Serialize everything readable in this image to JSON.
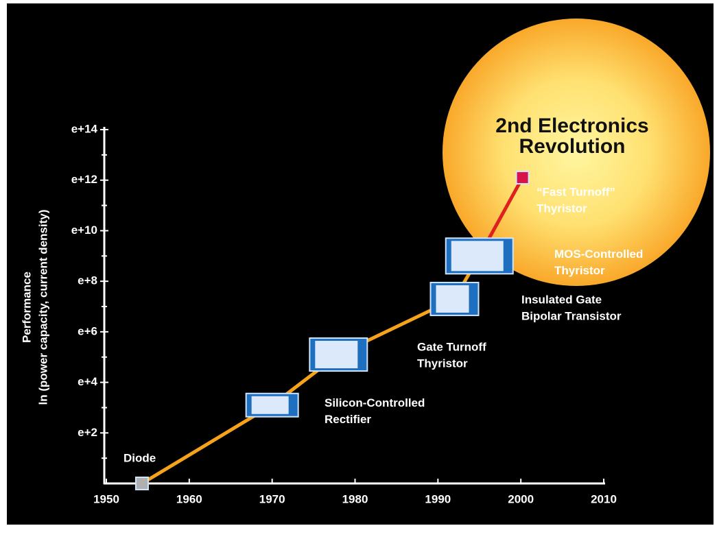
{
  "chart_data": {
    "type": "line",
    "title": [
      "2nd Electronics",
      "Revolution"
    ],
    "y_label": [
      "Performance",
      "ln (power capacity, current density)"
    ],
    "x": [
      1954.3,
      1970,
      1978,
      1992,
      1995,
      2000.2
    ],
    "values": [
      0,
      3.1,
      5.1,
      7.3,
      9,
      12.1
    ],
    "point_labels": [
      [
        "Diode"
      ],
      [
        "Silicon-Controlled",
        "Rectifier"
      ],
      [
        "Gate Turnoff",
        "Thyristor"
      ],
      [
        "Insulated Gate",
        "Bipolar Transistor"
      ],
      [
        "MOS-Controlled",
        "Thyristor"
      ],
      [
        "“Fast Turnoff”",
        "Thyristor"
      ]
    ],
    "point_colors": [
      "#b0b0b0",
      "#1e6fbf",
      "#1e6fbf",
      "#1e6fbf",
      "#1e6fbf",
      "#d8134a"
    ],
    "line_colors": [
      "#f7a21b",
      "#e02020"
    ],
    "xlim": [
      1950,
      2010
    ],
    "xticks": [
      1950,
      1960,
      1970,
      1980,
      1990,
      2000,
      2010
    ],
    "ylim": [
      0,
      14
    ],
    "yticks": [
      {
        "value": 2,
        "label": "e+2"
      },
      {
        "value": 4,
        "label": "e+4"
      },
      {
        "value": 6,
        "label": "e+6"
      },
      {
        "value": 8,
        "label": "e+8"
      },
      {
        "value": 10,
        "label": "e+10"
      },
      {
        "value": 12,
        "label": "e+12"
      },
      {
        "value": 14,
        "label": "e+14"
      }
    ],
    "yminor": [
      1,
      3,
      5,
      7,
      9,
      11,
      13
    ]
  }
}
